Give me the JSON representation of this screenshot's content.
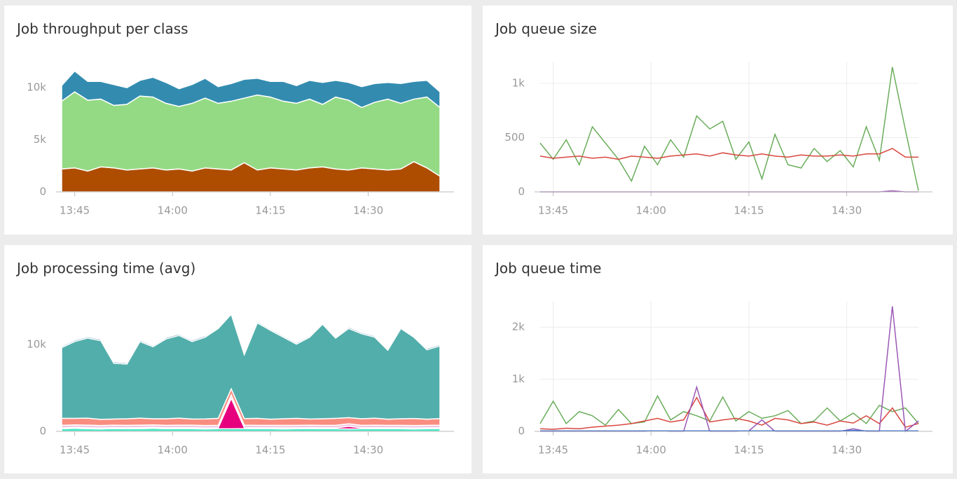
{
  "chart_data": [
    {
      "type": "area",
      "title": "Job throughput per class",
      "grid": false,
      "x": [
        "13:43",
        "13:45",
        "13:47",
        "13:49",
        "13:51",
        "13:53",
        "13:55",
        "13:57",
        "13:59",
        "14:01",
        "14:03",
        "14:05",
        "14:07",
        "14:09",
        "14:11",
        "14:13",
        "14:15",
        "14:17",
        "14:19",
        "14:21",
        "14:23",
        "14:25",
        "14:27",
        "14:29",
        "14:31",
        "14:33",
        "14:35",
        "14:37",
        "14:39",
        "14:41"
      ],
      "xlim": [
        "13:43",
        "14:41"
      ],
      "xticks": [
        "13:45",
        "14:00",
        "14:15",
        "14:30"
      ],
      "ylim": [
        0,
        12500
      ],
      "yticks": [
        0,
        {
          "value": 5000,
          "label": "5k"
        },
        {
          "value": 10000,
          "label": "10k"
        }
      ],
      "series": [
        {
          "color": "#ae4d00",
          "values": [
            2200,
            2300,
            2000,
            2400,
            2300,
            2100,
            2200,
            2300,
            2100,
            2200,
            2000,
            2300,
            2200,
            2100,
            2800,
            2100,
            2300,
            2200,
            2100,
            2300,
            2400,
            2200,
            2100,
            2300,
            2200,
            2100,
            2200,
            2900,
            2300,
            1500
          ]
        },
        {
          "color": "#94da84",
          "values": [
            6500,
            7300,
            6800,
            6500,
            6000,
            6300,
            7000,
            6800,
            6400,
            6000,
            6500,
            6700,
            6300,
            6600,
            6200,
            7200,
            6800,
            6500,
            6400,
            6600,
            6000,
            6900,
            6700,
            5800,
            6400,
            6800,
            6300,
            6000,
            6800,
            6600
          ]
        },
        {
          "color": "#338cb0",
          "values": [
            1500,
            2000,
            1800,
            1700,
            2000,
            1600,
            1500,
            1900,
            2000,
            1700,
            1800,
            1900,
            1600,
            1700,
            1800,
            1600,
            1500,
            1900,
            1700,
            1800,
            2100,
            1600,
            1700,
            2000,
            1800,
            1600,
            1900,
            1700,
            1600,
            1500
          ]
        }
      ]
    },
    {
      "type": "line",
      "title": "Job queue size",
      "grid": true,
      "x": [
        "13:43",
        "13:45",
        "13:47",
        "13:49",
        "13:51",
        "13:53",
        "13:55",
        "13:57",
        "13:59",
        "14:01",
        "14:03",
        "14:05",
        "14:07",
        "14:09",
        "14:11",
        "14:13",
        "14:15",
        "14:17",
        "14:19",
        "14:21",
        "14:23",
        "14:25",
        "14:27",
        "14:29",
        "14:31",
        "14:33",
        "14:35",
        "14:37",
        "14:39",
        "14:41"
      ],
      "xlim": [
        "13:43",
        "14:41"
      ],
      "xticks": [
        "13:45",
        "14:00",
        "14:15",
        "14:30"
      ],
      "ylim": [
        0,
        1200
      ],
      "yticks": [
        0,
        500,
        {
          "value": 1000,
          "label": "1k"
        }
      ],
      "series": [
        {
          "color": "#6aad5b",
          "values": [
            450,
            300,
            480,
            250,
            600,
            450,
            300,
            100,
            420,
            250,
            480,
            320,
            700,
            580,
            650,
            300,
            460,
            120,
            530,
            250,
            220,
            400,
            280,
            380,
            230,
            600,
            290,
            1150,
            570,
            10
          ]
        },
        {
          "color": "#d9473f",
          "values": [
            330,
            310,
            320,
            330,
            310,
            320,
            300,
            330,
            320,
            310,
            330,
            340,
            350,
            330,
            360,
            340,
            330,
            350,
            330,
            320,
            340,
            330,
            330,
            340,
            330,
            350,
            350,
            400,
            320,
            320
          ]
        },
        {
          "color": "#9b59b6",
          "values": [
            0,
            0,
            0,
            0,
            0,
            0,
            0,
            0,
            0,
            0,
            0,
            0,
            0,
            0,
            0,
            0,
            0,
            0,
            0,
            0,
            0,
            0,
            0,
            0,
            0,
            0,
            0,
            10,
            0,
            0
          ]
        }
      ]
    },
    {
      "type": "area",
      "title": "Job processing time (avg)",
      "grid": false,
      "x": [
        "13:43",
        "13:45",
        "13:47",
        "13:49",
        "13:51",
        "13:53",
        "13:55",
        "13:57",
        "13:59",
        "14:01",
        "14:03",
        "14:05",
        "14:07",
        "14:09",
        "14:11",
        "14:13",
        "14:15",
        "14:17",
        "14:19",
        "14:21",
        "14:23",
        "14:25",
        "14:27",
        "14:29",
        "14:31",
        "14:33",
        "14:35",
        "14:37",
        "14:39",
        "14:41"
      ],
      "xlim": [
        "13:43",
        "14:41"
      ],
      "xticks": [
        "13:45",
        "14:00",
        "14:15",
        "14:30"
      ],
      "ylim": [
        0,
        15000
      ],
      "yticks": [
        0,
        {
          "value": 10000,
          "label": "10k"
        }
      ],
      "series": [
        {
          "color": "#3ee8c0",
          "values": [
            300,
            350,
            300,
            280,
            320,
            300,
            300,
            350,
            300,
            320,
            300,
            280,
            300,
            300,
            320,
            300,
            300,
            280,
            300,
            320,
            300,
            300,
            280,
            300,
            320,
            300,
            300,
            280,
            300,
            320
          ]
        },
        {
          "color": "#e6007e",
          "values": [
            100,
            100,
            120,
            100,
            100,
            100,
            120,
            100,
            100,
            100,
            120,
            100,
            100,
            3500,
            100,
            100,
            100,
            120,
            100,
            100,
            100,
            100,
            300,
            100,
            100,
            100,
            100,
            100,
            100,
            100
          ]
        },
        {
          "color": "#f2c6e0",
          "values": [
            300,
            300,
            300,
            300,
            300,
            300,
            300,
            300,
            300,
            300,
            300,
            300,
            300,
            400,
            300,
            300,
            300,
            300,
            300,
            300,
            300,
            300,
            300,
            300,
            300,
            300,
            300,
            300,
            300,
            300
          ]
        },
        {
          "color": "#f98d80",
          "values": [
            800,
            750,
            800,
            700,
            700,
            750,
            800,
            700,
            750,
            800,
            700,
            750,
            800,
            700,
            750,
            800,
            700,
            750,
            800,
            700,
            750,
            800,
            700,
            750,
            800,
            700,
            750,
            800,
            700,
            750
          ]
        },
        {
          "color": "#52aeab",
          "values": [
            8150,
            8850,
            9230,
            9070,
            6430,
            6300,
            8830,
            8300,
            9200,
            9530,
            8930,
            9420,
            10350,
            8600,
            7380,
            11000,
            10250,
            9400,
            8550,
            9430,
            10900,
            9250,
            10270,
            9800,
            9330,
            7950,
            10400,
            9370,
            8000,
            8380
          ]
        },
        {
          "color": "#2a6f97",
          "values": [
            150,
            150,
            150,
            150,
            150,
            150,
            150,
            150,
            150,
            150,
            150,
            150,
            150,
            150,
            150,
            150,
            150,
            150,
            150,
            150,
            150,
            150,
            150,
            150,
            150,
            150,
            150,
            150,
            150,
            150
          ]
        }
      ]
    },
    {
      "type": "line",
      "title": "Job queue time",
      "grid": true,
      "x": [
        "13:43",
        "13:45",
        "13:47",
        "13:49",
        "13:51",
        "13:53",
        "13:55",
        "13:57",
        "13:59",
        "14:01",
        "14:03",
        "14:05",
        "14:07",
        "14:09",
        "14:11",
        "14:13",
        "14:15",
        "14:17",
        "14:19",
        "14:21",
        "14:23",
        "14:25",
        "14:27",
        "14:29",
        "14:31",
        "14:33",
        "14:35",
        "14:37",
        "14:39",
        "14:41"
      ],
      "xlim": [
        "13:43",
        "14:41"
      ],
      "xticks": [
        "13:45",
        "14:00",
        "14:15",
        "14:30"
      ],
      "ylim": [
        0,
        2500
      ],
      "yticks": [
        0,
        {
          "value": 1000,
          "label": "1k"
        },
        {
          "value": 2000,
          "label": "2k"
        }
      ],
      "series": [
        {
          "color": "#6aad5b",
          "values": [
            150,
            580,
            150,
            380,
            300,
            120,
            420,
            150,
            180,
            680,
            220,
            380,
            300,
            200,
            660,
            200,
            380,
            250,
            300,
            400,
            150,
            200,
            450,
            200,
            350,
            150,
            500,
            380,
            450,
            150
          ]
        },
        {
          "color": "#d9473f",
          "values": [
            50,
            40,
            60,
            50,
            80,
            100,
            120,
            150,
            200,
            250,
            180,
            220,
            650,
            180,
            220,
            250,
            200,
            120,
            250,
            220,
            150,
            180,
            120,
            200,
            160,
            300,
            150,
            450,
            80,
            150
          ]
        },
        {
          "color": "#9b59b6",
          "values": [
            0,
            0,
            0,
            0,
            0,
            0,
            0,
            0,
            0,
            10,
            0,
            0,
            850,
            0,
            0,
            0,
            10,
            220,
            0,
            0,
            0,
            0,
            0,
            0,
            50,
            0,
            0,
            2400,
            0,
            200
          ]
        },
        {
          "color": "#3a6fd0",
          "values": [
            10,
            10,
            10,
            10,
            10,
            10,
            10,
            10,
            10,
            10,
            10,
            10,
            10,
            10,
            10,
            10,
            10,
            10,
            10,
            10,
            10,
            10,
            10,
            10,
            20,
            10,
            10,
            10,
            10,
            10
          ]
        }
      ]
    }
  ]
}
